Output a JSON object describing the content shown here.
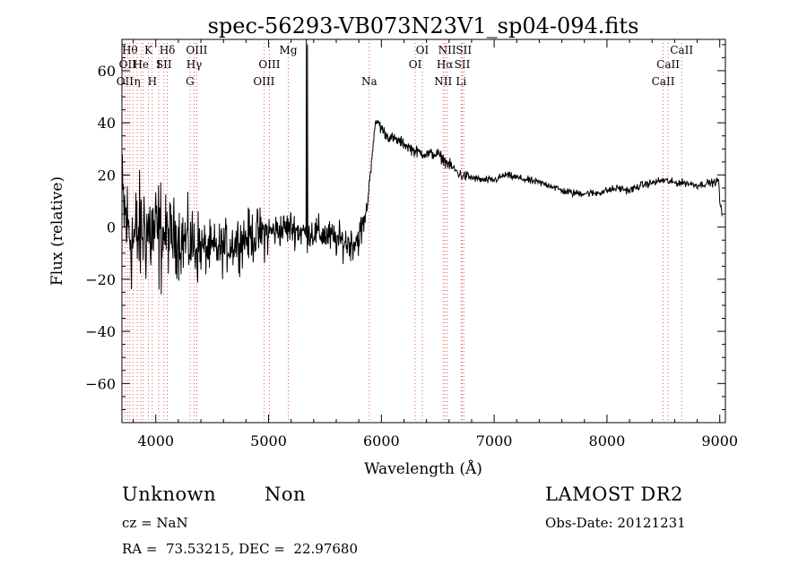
{
  "chart_data": {
    "type": "line",
    "title": "spec-56293-VB073N23V1_sp04-094.fits",
    "xlabel": "Wavelength (Å)",
    "ylabel": "Flux (relative)",
    "xlim": [
      3700,
      9050
    ],
    "ylim": [
      -75,
      72
    ],
    "xticks": [
      4000,
      5000,
      6000,
      7000,
      8000,
      9000
    ],
    "yticks": [
      -60,
      -40,
      -20,
      0,
      20,
      40,
      60
    ],
    "line_color": "#000000",
    "marker_line_color": "#e03030",
    "spectrum_anchors": {
      "x": [
        3700,
        3750,
        3800,
        3850,
        3900,
        3950,
        4000,
        4100,
        4200,
        4300,
        4400,
        4500,
        4600,
        4700,
        4800,
        4900,
        5000,
        5100,
        5200,
        5300,
        5400,
        5500,
        5600,
        5700,
        5750,
        5800,
        5850,
        5880,
        5900,
        5930,
        5960,
        6000,
        6050,
        6100,
        6200,
        6300,
        6400,
        6500,
        6600,
        6700,
        6800,
        6900,
        7000,
        7100,
        7200,
        7300,
        7400,
        7500,
        7600,
        7700,
        7800,
        7900,
        8000,
        8100,
        8200,
        8300,
        8400,
        8500,
        8600,
        8700,
        8800,
        8900,
        8950,
        8990,
        9000,
        9020
      ],
      "y": [
        10,
        0,
        -5,
        -3,
        0,
        -2,
        -3,
        -3,
        -4,
        -6,
        -8,
        -9,
        -8,
        -6,
        -4,
        -3,
        -2,
        -1,
        0,
        -2,
        -2,
        -3,
        -5,
        -6,
        -6,
        -4,
        2,
        10,
        20,
        34,
        41,
        38,
        35,
        34,
        32,
        29,
        28,
        28,
        24,
        20,
        19,
        18,
        18,
        20,
        19,
        18,
        17,
        16,
        14,
        13,
        13,
        13,
        14,
        15,
        14,
        16,
        17,
        18,
        17,
        17,
        16,
        17,
        17,
        18,
        10,
        5
      ]
    },
    "spikes": [
      {
        "x": 5335,
        "y": 72
      },
      {
        "x": 5345,
        "y": 70
      }
    ],
    "line_markers": [
      {
        "wavelength": 3727,
        "label": "OII",
        "row": 3
      },
      {
        "wavelength": 3750,
        "label": "OII",
        "row": 2
      },
      {
        "wavelength": 3770,
        "label": "Hθ",
        "row": 1
      },
      {
        "wavelength": 3797,
        "label": "",
        "row": 0
      },
      {
        "wavelength": 3835,
        "label": "η",
        "row": 3
      },
      {
        "wavelength": 3869,
        "label": "He",
        "row": 2
      },
      {
        "wavelength": 3889,
        "label": "",
        "row": 0
      },
      {
        "wavelength": 3934,
        "label": "K",
        "row": 1
      },
      {
        "wavelength": 3969,
        "label": "H",
        "row": 3
      },
      {
        "wavelength": 4026,
        "label": "I",
        "row": 2
      },
      {
        "wavelength": 4072,
        "label": "SII",
        "row": 2
      },
      {
        "wavelength": 4102,
        "label": "Hδ",
        "row": 1
      },
      {
        "wavelength": 4304,
        "label": "G",
        "row": 3
      },
      {
        "wavelength": 4340,
        "label": "Hγ",
        "row": 2
      },
      {
        "wavelength": 4363,
        "label": "OIII",
        "row": 1
      },
      {
        "wavelength": 4959,
        "label": "OIII",
        "row": 3
      },
      {
        "wavelength": 5007,
        "label": "OIII",
        "row": 2
      },
      {
        "wavelength": 5175,
        "label": "Mg",
        "row": 1
      },
      {
        "wavelength": 5893,
        "label": "Na",
        "row": 3
      },
      {
        "wavelength": 6300,
        "label": "OI",
        "row": 2
      },
      {
        "wavelength": 6363,
        "label": "OI",
        "row": 1
      },
      {
        "wavelength": 6548,
        "label": "NII",
        "row": 3
      },
      {
        "wavelength": 6563,
        "label": "Hα",
        "row": 2
      },
      {
        "wavelength": 6583,
        "label": "NII",
        "row": 1
      },
      {
        "wavelength": 6707,
        "label": "Li",
        "row": 3
      },
      {
        "wavelength": 6717,
        "label": "SII",
        "row": 2
      },
      {
        "wavelength": 6731,
        "label": "SII",
        "row": 1
      },
      {
        "wavelength": 8498,
        "label": "CaII",
        "row": 3
      },
      {
        "wavelength": 8542,
        "label": "CaII",
        "row": 2
      },
      {
        "wavelength": 8662,
        "label": "CaII",
        "row": 1
      }
    ]
  },
  "info": {
    "class_label": "Unknown",
    "subclass_label": "Non",
    "survey_label": "LAMOST DR2",
    "cz_text": "cz = NaN",
    "obs_date_text": "Obs-Date: 20121231",
    "coords_text": "RA =  73.53215, DEC =  22.97680"
  }
}
